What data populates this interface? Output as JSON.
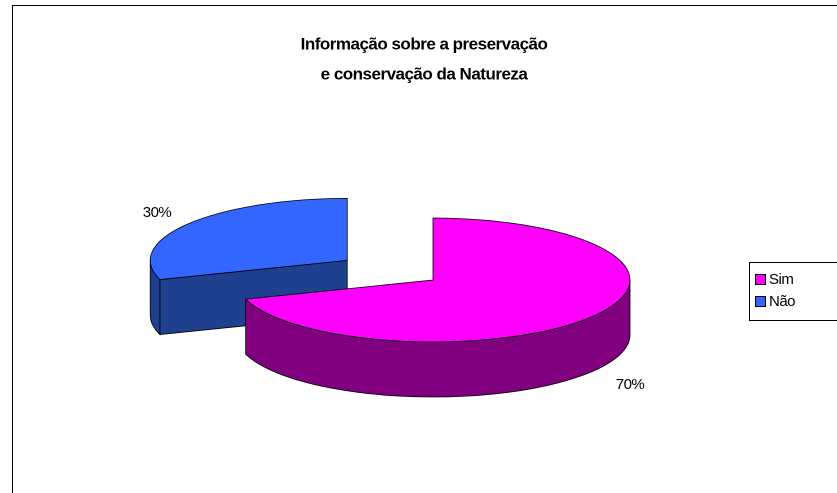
{
  "chart_data": {
    "type": "pie",
    "title": [
      "Informação sobre a preservação",
      "e conservação da Natureza"
    ],
    "categories": [
      "Sim",
      "Não"
    ],
    "values": [
      70,
      30
    ],
    "value_labels": [
      "70%",
      "30%"
    ],
    "colors": [
      "#FF00FF",
      "#3366FF"
    ],
    "side_colors": [
      "#800080",
      "#1F3F8F"
    ],
    "legend": "right"
  }
}
